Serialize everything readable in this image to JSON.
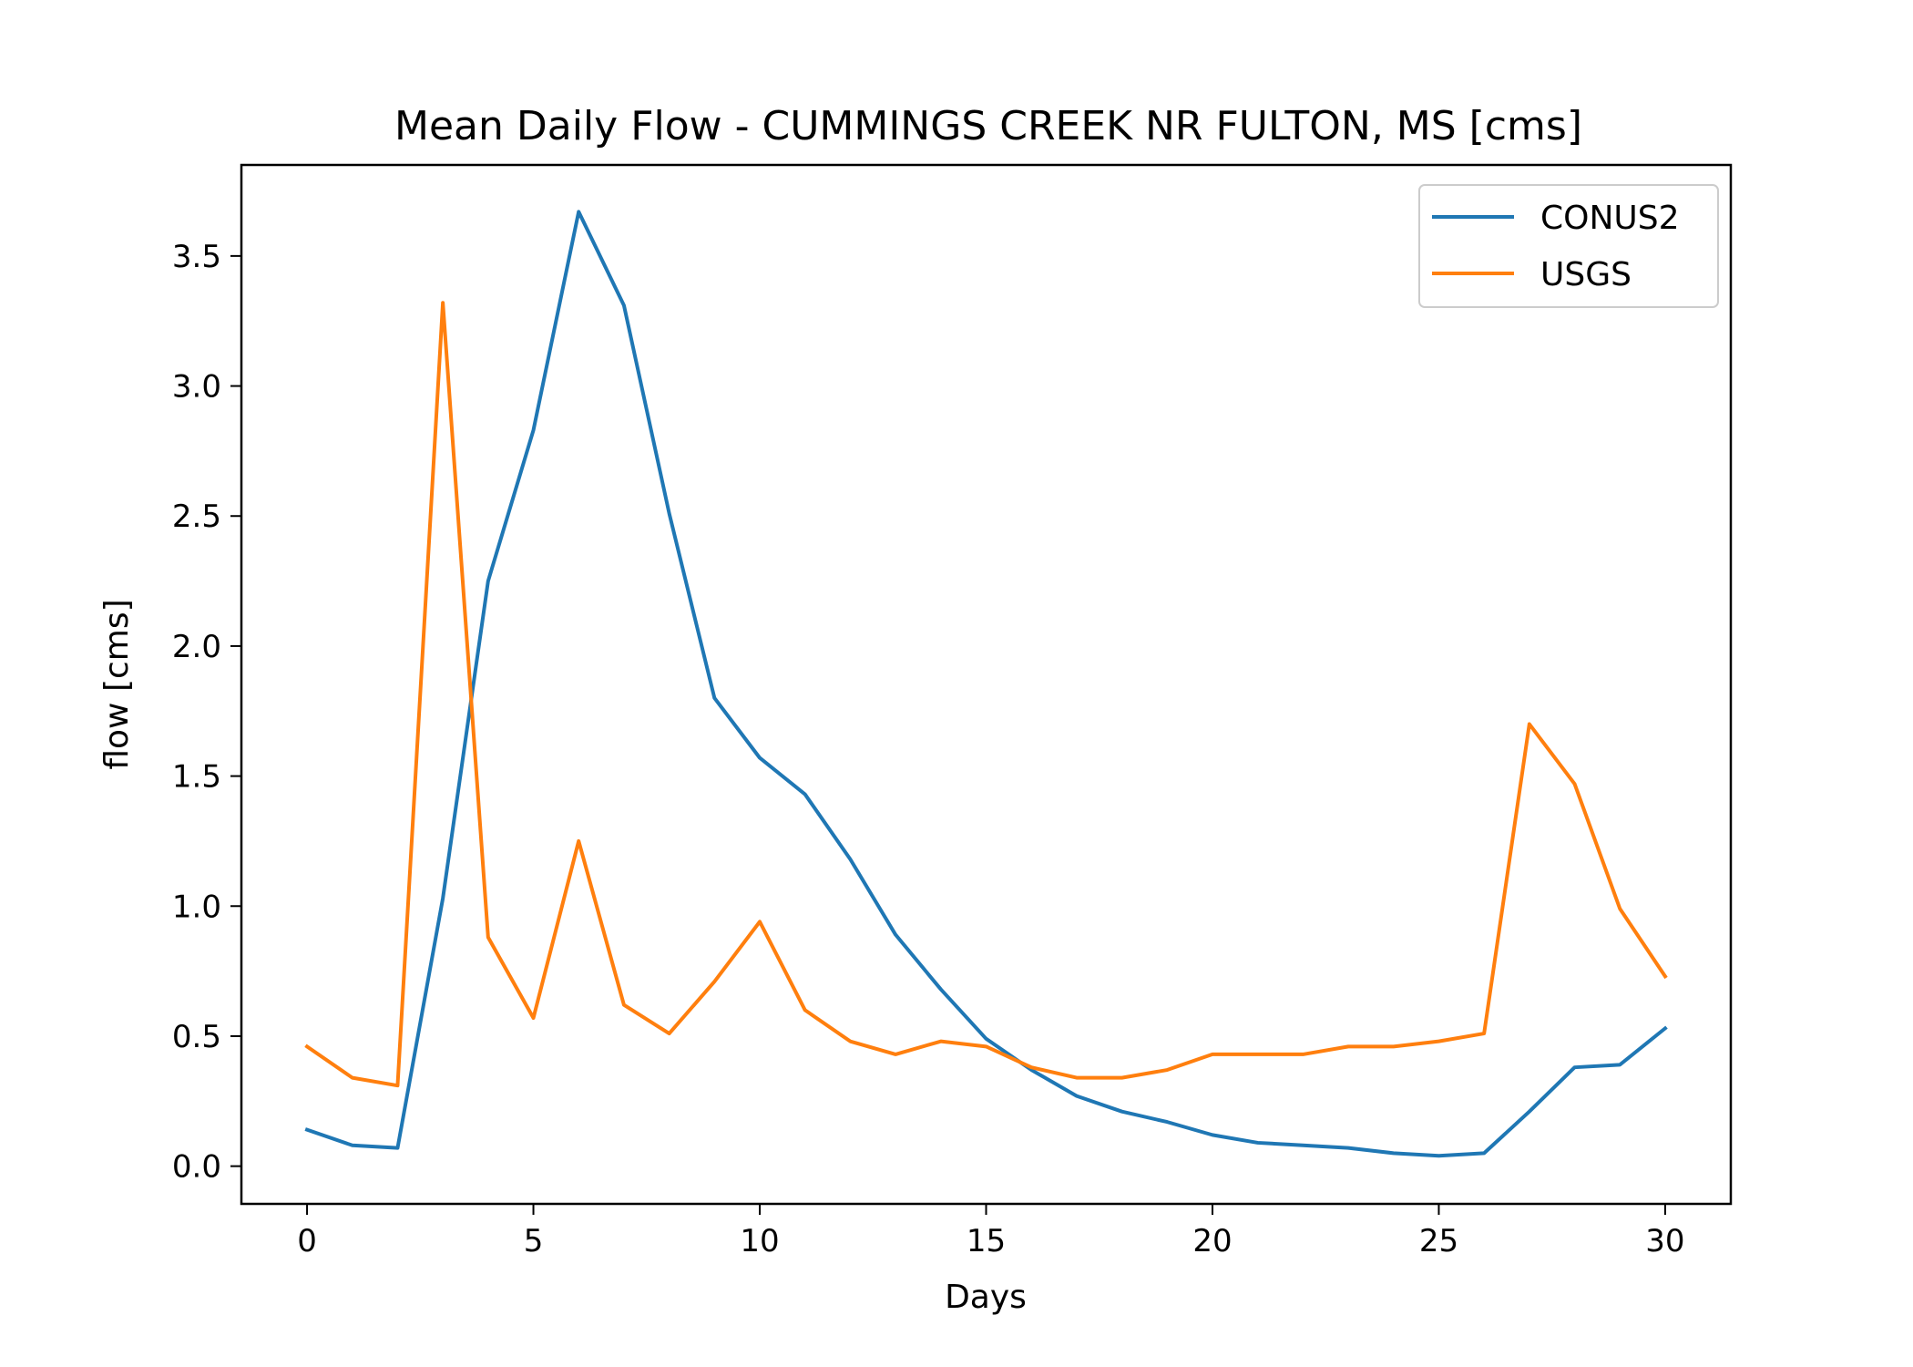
{
  "chart_data": {
    "type": "line",
    "title": "Mean Daily Flow - CUMMINGS CREEK NR FULTON, MS [cms]",
    "xlabel": "Days",
    "ylabel": "flow [cms]",
    "xlim": [
      -1.45,
      31.45
    ],
    "ylim": [
      -0.145,
      3.85
    ],
    "xticks": [
      0,
      5,
      10,
      15,
      20,
      25,
      30
    ],
    "xtick_labels": [
      "0",
      "5",
      "10",
      "15",
      "20",
      "25",
      "30"
    ],
    "yticks": [
      0.0,
      0.5,
      1.0,
      1.5,
      2.0,
      2.5,
      3.0,
      3.5
    ],
    "ytick_labels": [
      "0.0",
      "0.5",
      "1.0",
      "1.5",
      "2.0",
      "2.5",
      "3.0",
      "3.5"
    ],
    "grid": false,
    "legend_position": "upper-right",
    "x": [
      0,
      1,
      2,
      3,
      4,
      5,
      6,
      7,
      8,
      9,
      10,
      11,
      12,
      13,
      14,
      15,
      16,
      17,
      18,
      19,
      20,
      21,
      22,
      23,
      24,
      25,
      26,
      27,
      28,
      29,
      30
    ],
    "series": [
      {
        "name": "CONUS2",
        "color": "#1f77b4",
        "values": [
          0.14,
          0.08,
          0.07,
          1.03,
          2.25,
          2.83,
          3.67,
          3.31,
          2.51,
          1.8,
          1.57,
          1.43,
          1.18,
          0.89,
          0.68,
          0.49,
          0.37,
          0.27,
          0.21,
          0.17,
          0.12,
          0.09,
          0.08,
          0.07,
          0.05,
          0.04,
          0.05,
          0.21,
          0.38,
          0.39,
          0.53
        ]
      },
      {
        "name": "USGS",
        "color": "#ff7f0e",
        "values": [
          0.46,
          0.34,
          0.31,
          3.32,
          0.88,
          0.57,
          1.25,
          0.62,
          0.51,
          0.71,
          0.94,
          0.6,
          0.48,
          0.43,
          0.48,
          0.46,
          0.38,
          0.34,
          0.34,
          0.37,
          0.43,
          0.43,
          0.43,
          0.46,
          0.46,
          0.48,
          0.51,
          1.7,
          1.47,
          0.99,
          0.73
        ]
      }
    ]
  }
}
